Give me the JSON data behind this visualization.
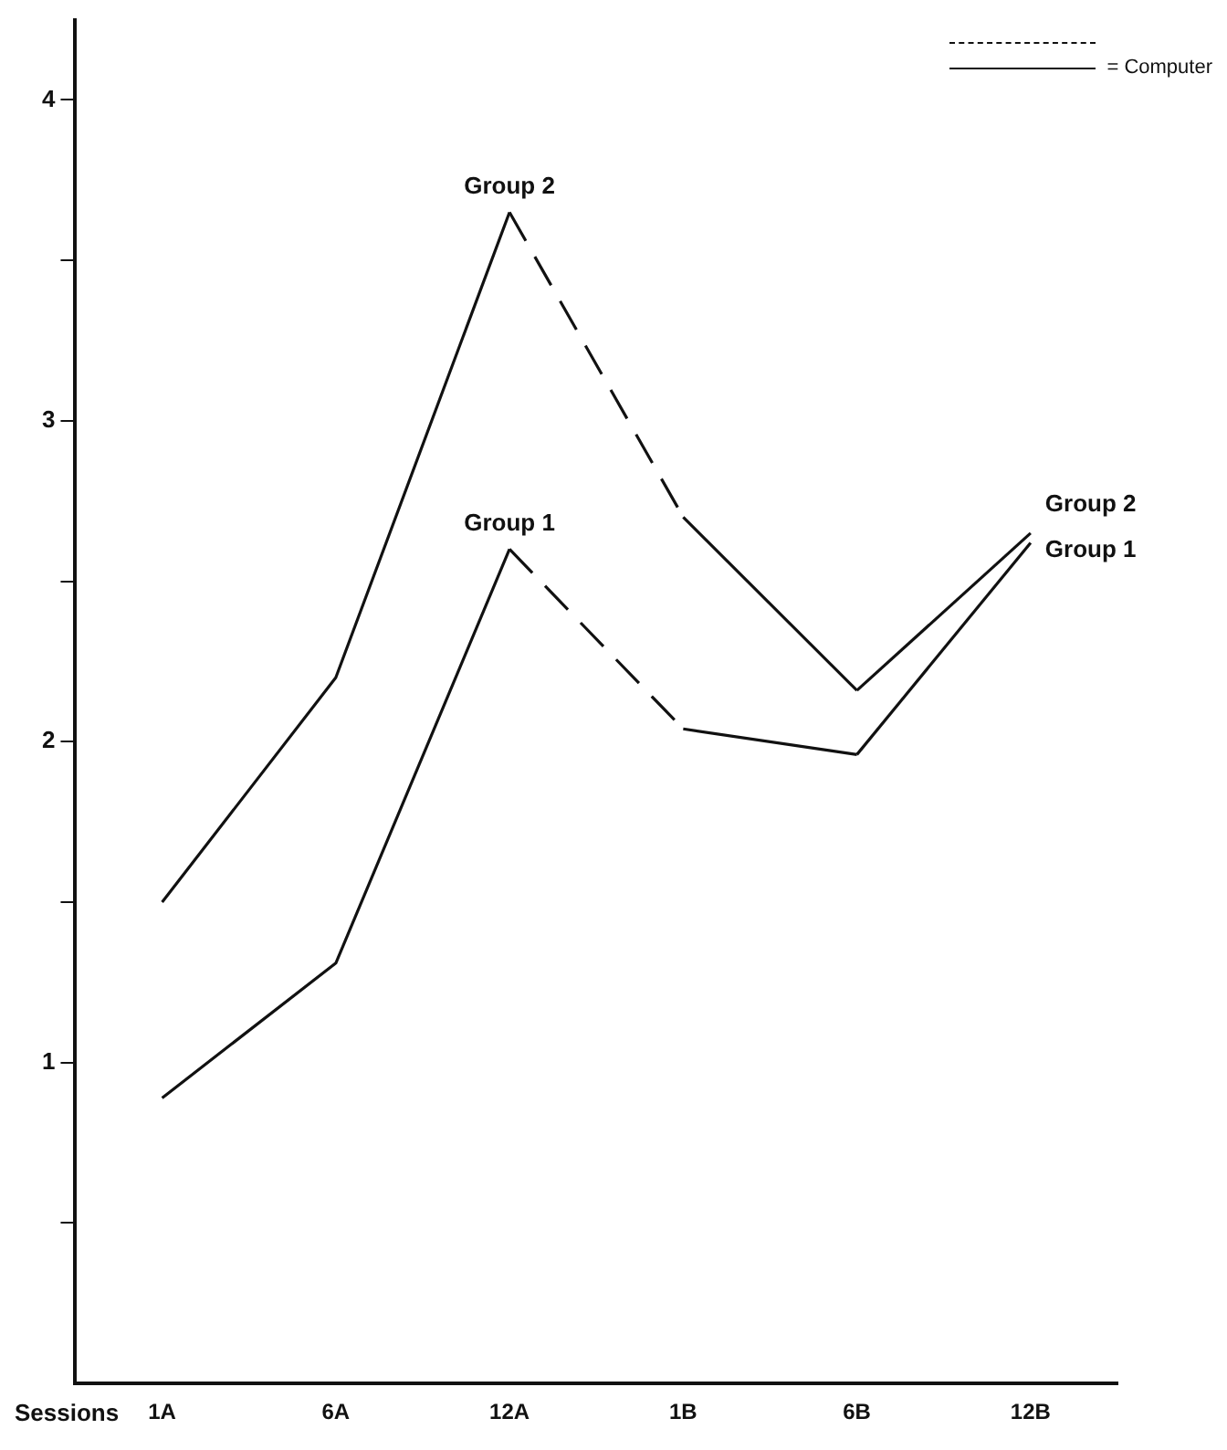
{
  "chart_data": {
    "type": "line",
    "xlabel": "Sessions",
    "categories": [
      "1A",
      "6A",
      "12A",
      "1B",
      "6B",
      "12B"
    ],
    "series": [
      {
        "color": "#111111",
        "x": [
          "1A",
          "6A",
          "12A"
        ],
        "values": [
          1.5,
          2.2,
          3.65
        ],
        "line_style": "solid"
      },
      {
        "color": "#111111",
        "x": [
          "12A",
          "1B"
        ],
        "values": [
          3.65,
          2.7
        ],
        "line_style": "dashed"
      },
      {
        "color": "#111111",
        "x": [
          "1B",
          "6B"
        ],
        "values": [
          2.7,
          2.16
        ],
        "line_style": "solid"
      },
      {
        "color": "#111111",
        "x": [
          "6B",
          "12B"
        ],
        "values": [
          2.16,
          2.65
        ],
        "line_style": "solid"
      },
      {
        "color": "#111111",
        "x": [
          "1A",
          "6A",
          "12A"
        ],
        "values": [
          0.89,
          1.31,
          2.6
        ],
        "line_style": "solid"
      },
      {
        "color": "#111111",
        "x": [
          "12A",
          "1B"
        ],
        "values": [
          2.6,
          2.04
        ],
        "line_style": "dashed"
      },
      {
        "color": "#111111",
        "x": [
          "1B",
          "6B"
        ],
        "values": [
          2.04,
          1.96
        ],
        "line_style": "solid"
      },
      {
        "color": "#111111",
        "x": [
          "6B",
          "12B"
        ],
        "values": [
          1.96,
          2.62
        ],
        "line_style": "solid"
      }
    ],
    "ylim": [
      0,
      4.25
    ],
    "yticks": [
      {
        "value": 0.5,
        "label": null
      },
      1,
      {
        "value": 1.5,
        "label": null
      },
      2,
      {
        "value": 2.5,
        "label": null
      },
      3,
      {
        "value": 3.5,
        "label": null
      },
      4
    ],
    "grid": false,
    "legend": false,
    "marker": "none",
    "annotations": [
      {
        "text": "Group 2",
        "x": "12A",
        "y": 3.65
      },
      {
        "text": "Group 1",
        "x": "12A",
        "y": 2.6
      },
      {
        "text": "Group 2",
        "x": "12B",
        "y": 2.65
      },
      {
        "text": "Group 1",
        "x": "12B",
        "y": 2.62
      },
      "= Computer"
    ]
  }
}
